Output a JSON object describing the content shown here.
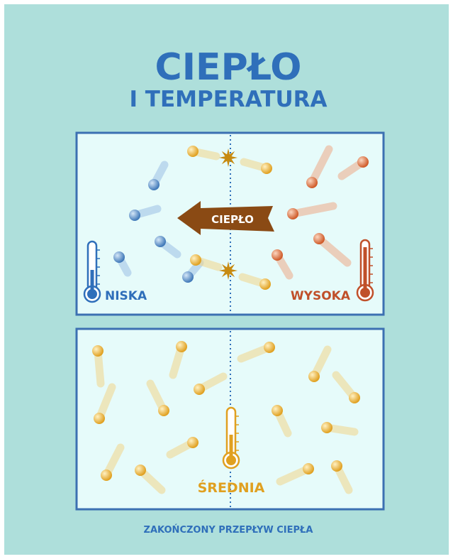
{
  "header": {
    "title": "CIEPŁO",
    "subtitle": "I TEMPERATURA"
  },
  "top_panel": {
    "arrow_label": "CIEPŁO",
    "left_label": "NISKA",
    "right_label": "WYSOKA"
  },
  "bottom_panel": {
    "label": "ŚREDNIA"
  },
  "footer": {
    "caption": "ZAKOŃCZONY PRZEPŁYW CIEPŁA"
  }
}
